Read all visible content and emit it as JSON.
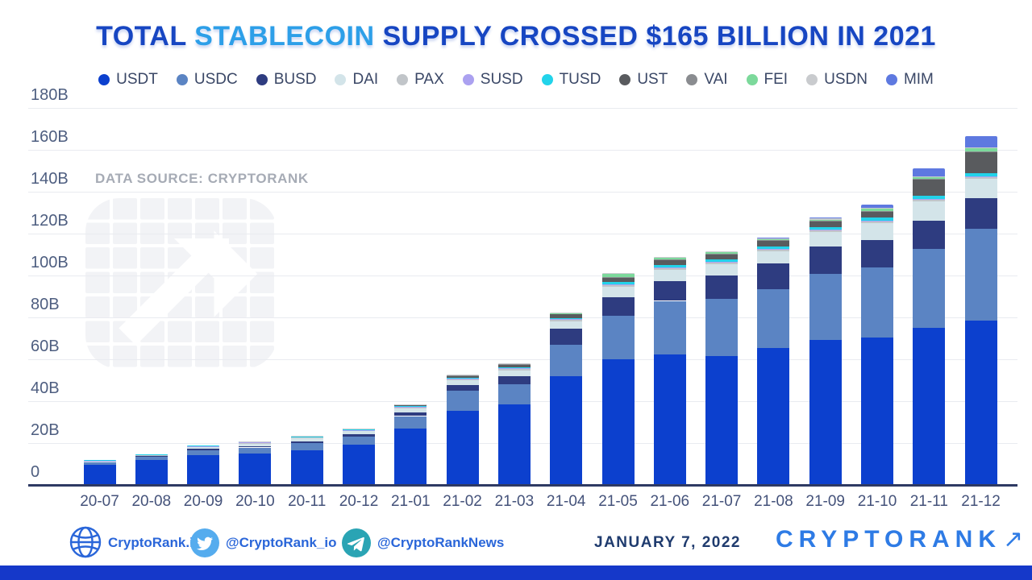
{
  "title": {
    "pre": "TOTAL ",
    "highlight": "STABLECOIN",
    "post": " SUPPLY CROSSED $165 BILLION IN 2021"
  },
  "watermark": {
    "data_source": "DATA SOURCE: CRYPTORANK"
  },
  "chart_data": {
    "type": "bar",
    "stacked": true,
    "grid": true,
    "legend_position": "top",
    "unit": "billion USD",
    "ylim": [
      0,
      180
    ],
    "y_tick_labels": [
      "0",
      "20B",
      "40B",
      "60B",
      "80B",
      "100B",
      "120B",
      "140B",
      "160B",
      "180B"
    ],
    "categories": [
      "20-07",
      "20-08",
      "20-09",
      "20-10",
      "20-11",
      "20-12",
      "21-01",
      "21-02",
      "21-03",
      "21-04",
      "21-05",
      "21-06",
      "21-07",
      "21-08",
      "21-09",
      "21-10",
      "21-11",
      "21-12"
    ],
    "series": [
      {
        "name": "USDT",
        "color": "#0c40ce",
        "values": [
          9.3,
          11.5,
          14.0,
          14.8,
          16.3,
          19.0,
          26.5,
          35.0,
          38.0,
          51.5,
          59.5,
          62.0,
          61.0,
          65.0,
          68.8,
          70.0,
          74.5,
          78.0
        ]
      },
      {
        "name": "USDC",
        "color": "#5b84c3",
        "values": [
          1.1,
          1.4,
          2.2,
          2.7,
          3.3,
          3.8,
          6.0,
          9.8,
          9.8,
          15.0,
          21.0,
          25.5,
          27.5,
          28.0,
          31.5,
          33.5,
          37.7,
          44.0
        ]
      },
      {
        "name": "BUSD",
        "color": "#2e3c80",
        "values": [
          0.2,
          0.4,
          0.6,
          0.7,
          0.8,
          1.1,
          1.7,
          2.5,
          3.9,
          7.8,
          8.8,
          9.5,
          11.0,
          12.2,
          13.3,
          13.2,
          13.5,
          14.6
        ]
      },
      {
        "name": "DAI",
        "color": "#d3e4e9",
        "values": [
          0.3,
          0.4,
          0.9,
          1.2,
          1.6,
          1.4,
          1.8,
          2.3,
          2.6,
          3.5,
          4.8,
          5.3,
          5.5,
          6.0,
          6.7,
          8.1,
          9.3,
          9.2
        ]
      },
      {
        "name": "PAX",
        "color": "#c1c5c9",
        "values": [
          0.25,
          0.3,
          0.4,
          0.4,
          0.4,
          0.5,
          0.7,
          0.7,
          0.8,
          1.0,
          0.9,
          0.9,
          0.9,
          0.9,
          0.9,
          0.9,
          0.9,
          0.9
        ]
      },
      {
        "name": "SUSD",
        "color": "#aba1f0",
        "values": [
          0.05,
          0.1,
          0.1,
          0.1,
          0.15,
          0.15,
          0.15,
          0.2,
          0.3,
          0.2,
          0.2,
          0.2,
          0.2,
          0.2,
          0.2,
          0.2,
          0.2,
          0.2
        ]
      },
      {
        "name": "TUSD",
        "color": "#22d3ea",
        "values": [
          0.15,
          0.2,
          0.3,
          0.3,
          0.3,
          0.3,
          0.3,
          0.3,
          0.3,
          0.3,
          1.5,
          1.3,
          1.2,
          1.3,
          1.4,
          1.3,
          1.5,
          1.6
        ]
      },
      {
        "name": "UST",
        "color": "#595b5e",
        "values": [
          0,
          0,
          0,
          0,
          0,
          0.2,
          0.6,
          0.9,
          1.2,
          1.8,
          2.0,
          2.2,
          2.5,
          2.6,
          2.7,
          2.9,
          7.8,
          10.0
        ]
      },
      {
        "name": "VAI",
        "color": "#8a8c90",
        "values": [
          0,
          0,
          0,
          0,
          0,
          0.1,
          0.2,
          0.3,
          0.3,
          0.3,
          0.3,
          0.3,
          0.3,
          0.3,
          0.3,
          0.3,
          0.3,
          0.3
        ]
      },
      {
        "name": "FEI",
        "color": "#7cd99b",
        "values": [
          0,
          0,
          0,
          0,
          0,
          0,
          0,
          0,
          0,
          0.3,
          1.3,
          0.7,
          0.7,
          0.6,
          0.5,
          1.0,
          0.7,
          1.4
        ]
      },
      {
        "name": "USDN",
        "color": "#c9cbce",
        "values": [
          0,
          0,
          0,
          0.1,
          0.1,
          0.1,
          0.2,
          0.3,
          0.4,
          0.4,
          0.5,
          0.5,
          0.5,
          0.5,
          0.6,
          0.6,
          0.6,
          0.6
        ]
      },
      {
        "name": "MIM",
        "color": "#5e79e0",
        "values": [
          0,
          0,
          0,
          0,
          0,
          0,
          0,
          0,
          0,
          0,
          0,
          0,
          0,
          0.1,
          0.3,
          1.5,
          3.8,
          5.2
        ]
      }
    ]
  },
  "footer": {
    "site_label": "CryptoRank.io",
    "twitter_label": "@CryptoRank_io",
    "telegram_label": "@CryptoRankNews",
    "date": "JANUARY 7, 2022",
    "brand": "CRYPTORANK",
    "brand_arrow": "↗",
    "accent_blue": "#2a66d9",
    "twitter_color": "#55acee",
    "telegram_color": "#2aa4b4"
  }
}
